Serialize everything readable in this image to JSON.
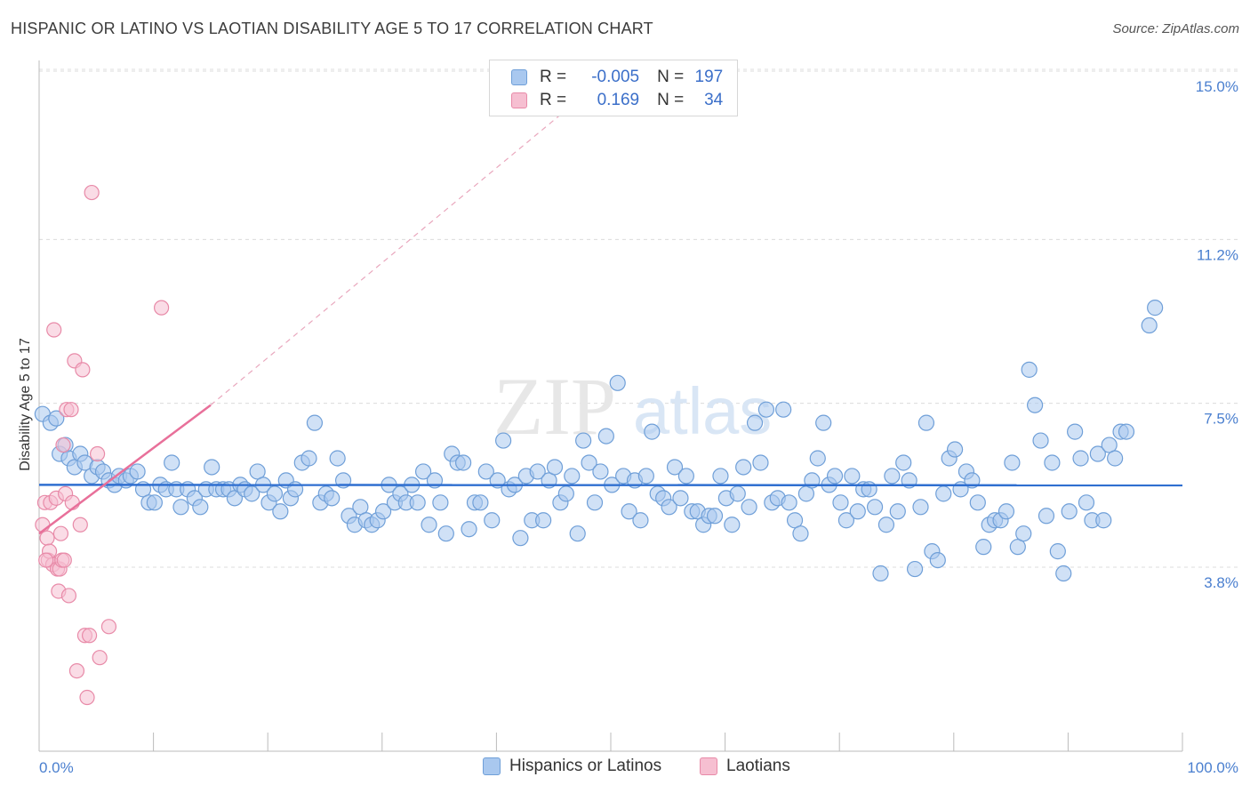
{
  "title": "HISPANIC OR LATINO VS LAOTIAN DISABILITY AGE 5 TO 17 CORRELATION CHART",
  "source": "Source: ZipAtlas.com",
  "watermark": "ZIPatlas",
  "colors": {
    "blue_fill": "#a9c8ef",
    "blue_stroke": "#6f9fd8",
    "blue_line": "#2f6fd0",
    "pink_fill": "#f6bfd1",
    "pink_stroke": "#e88aa8",
    "pink_line": "#e8709a",
    "tick_text": "#4a7fcf"
  },
  "legend": {
    "rows": [
      {
        "r_label": "R =",
        "r_value": "-0.005",
        "n_label": "N =",
        "n_value": "197"
      },
      {
        "r_label": "R =",
        "r_value": "0.169",
        "n_label": "N =",
        "n_value": "34"
      }
    ]
  },
  "bottom_legend": {
    "items": [
      {
        "label": "Hispanics or Latinos"
      },
      {
        "label": "Laotians"
      }
    ]
  },
  "chart_data": {
    "type": "scatter",
    "ylabel": "Disability Age 5 to 17",
    "xlabel": "",
    "xlim": [
      0,
      100
    ],
    "ylim": [
      0.5,
      15.5
    ],
    "x_tick_labels": [
      "0.0%",
      "100.0%"
    ],
    "y_ticks": [
      3.8,
      7.5,
      11.2,
      15.0
    ],
    "y_tick_labels": [
      "3.8%",
      "7.5%",
      "11.2%",
      "15.0%"
    ],
    "grid": "horizontal dashed",
    "series": [
      {
        "name": "Hispanics or Latinos",
        "color": "blue",
        "trend": {
          "x0": 0,
          "y0": 6.0,
          "x1": 100,
          "y1": 5.99
        },
        "points": [
          [
            0.3,
            7.6
          ],
          [
            1.0,
            7.4
          ],
          [
            1.5,
            7.5
          ],
          [
            1.8,
            6.7
          ],
          [
            2.3,
            6.9
          ],
          [
            2.6,
            6.6
          ],
          [
            3.1,
            6.4
          ],
          [
            3.6,
            6.7
          ],
          [
            4.0,
            6.5
          ],
          [
            4.6,
            6.2
          ],
          [
            5.1,
            6.4
          ],
          [
            5.6,
            6.3
          ],
          [
            6.1,
            6.1
          ],
          [
            6.6,
            6.0
          ],
          [
            7.0,
            6.2
          ],
          [
            7.6,
            6.1
          ],
          [
            8.0,
            6.2
          ],
          [
            8.6,
            6.3
          ],
          [
            9.1,
            5.9
          ],
          [
            9.6,
            5.6
          ],
          [
            10.1,
            5.6
          ],
          [
            10.6,
            6.0
          ],
          [
            11.1,
            5.9
          ],
          [
            11.6,
            6.5
          ],
          [
            12.0,
            5.9
          ],
          [
            12.4,
            5.5
          ],
          [
            13.0,
            5.9
          ],
          [
            13.6,
            5.7
          ],
          [
            14.1,
            5.5
          ],
          [
            14.6,
            5.9
          ],
          [
            15.1,
            6.4
          ],
          [
            15.5,
            5.9
          ],
          [
            16.1,
            5.9
          ],
          [
            16.6,
            5.9
          ],
          [
            17.1,
            5.7
          ],
          [
            17.6,
            6.0
          ],
          [
            18.0,
            5.9
          ],
          [
            18.6,
            5.8
          ],
          [
            19.1,
            6.3
          ],
          [
            19.6,
            6.0
          ],
          [
            20.1,
            5.6
          ],
          [
            20.6,
            5.8
          ],
          [
            21.1,
            5.4
          ],
          [
            21.6,
            6.1
          ],
          [
            22.0,
            5.7
          ],
          [
            22.4,
            5.9
          ],
          [
            23.0,
            6.5
          ],
          [
            23.6,
            6.6
          ],
          [
            24.1,
            7.4
          ],
          [
            24.6,
            5.6
          ],
          [
            25.1,
            5.8
          ],
          [
            25.6,
            5.7
          ],
          [
            26.1,
            6.6
          ],
          [
            26.6,
            6.1
          ],
          [
            27.1,
            5.3
          ],
          [
            27.6,
            5.1
          ],
          [
            28.1,
            5.5
          ],
          [
            28.6,
            5.2
          ],
          [
            29.1,
            5.1
          ],
          [
            29.6,
            5.2
          ],
          [
            30.1,
            5.4
          ],
          [
            30.6,
            6.0
          ],
          [
            31.1,
            5.6
          ],
          [
            31.6,
            5.8
          ],
          [
            32.1,
            5.6
          ],
          [
            32.6,
            6.0
          ],
          [
            33.1,
            5.6
          ],
          [
            33.6,
            6.3
          ],
          [
            34.1,
            5.1
          ],
          [
            34.6,
            6.1
          ],
          [
            35.1,
            5.6
          ],
          [
            35.6,
            4.9
          ],
          [
            36.1,
            6.7
          ],
          [
            36.6,
            6.5
          ],
          [
            37.1,
            6.5
          ],
          [
            37.6,
            5.0
          ],
          [
            38.1,
            5.6
          ],
          [
            38.6,
            5.6
          ],
          [
            39.1,
            6.3
          ],
          [
            39.6,
            5.2
          ],
          [
            40.1,
            6.1
          ],
          [
            40.6,
            7.0
          ],
          [
            41.1,
            5.9
          ],
          [
            41.6,
            6.0
          ],
          [
            42.1,
            4.8
          ],
          [
            42.6,
            6.2
          ],
          [
            43.1,
            5.2
          ],
          [
            43.6,
            6.3
          ],
          [
            44.1,
            5.2
          ],
          [
            44.6,
            6.1
          ],
          [
            45.1,
            6.4
          ],
          [
            45.6,
            5.6
          ],
          [
            46.1,
            5.8
          ],
          [
            46.6,
            6.2
          ],
          [
            47.1,
            4.9
          ],
          [
            47.6,
            7.0
          ],
          [
            48.1,
            6.5
          ],
          [
            48.6,
            5.6
          ],
          [
            49.1,
            6.3
          ],
          [
            49.6,
            7.1
          ],
          [
            50.1,
            6.0
          ],
          [
            50.6,
            8.3
          ],
          [
            51.1,
            6.2
          ],
          [
            51.6,
            5.4
          ],
          [
            52.1,
            6.1
          ],
          [
            52.6,
            5.2
          ],
          [
            53.1,
            6.2
          ],
          [
            53.6,
            7.2
          ],
          [
            54.1,
            5.8
          ],
          [
            54.6,
            5.7
          ],
          [
            55.1,
            5.5
          ],
          [
            55.6,
            6.4
          ],
          [
            56.1,
            5.7
          ],
          [
            56.6,
            6.2
          ],
          [
            57.1,
            5.4
          ],
          [
            57.6,
            5.4
          ],
          [
            58.1,
            5.1
          ],
          [
            58.6,
            5.3
          ],
          [
            59.1,
            5.3
          ],
          [
            59.6,
            6.2
          ],
          [
            60.1,
            5.7
          ],
          [
            60.6,
            5.1
          ],
          [
            61.1,
            5.8
          ],
          [
            61.6,
            6.4
          ],
          [
            62.1,
            5.5
          ],
          [
            62.6,
            7.4
          ],
          [
            63.1,
            6.5
          ],
          [
            63.6,
            7.7
          ],
          [
            64.1,
            5.6
          ],
          [
            64.6,
            5.7
          ],
          [
            65.1,
            7.7
          ],
          [
            65.6,
            5.6
          ],
          [
            66.1,
            5.2
          ],
          [
            66.6,
            4.9
          ],
          [
            67.1,
            5.8
          ],
          [
            67.6,
            6.1
          ],
          [
            68.1,
            6.6
          ],
          [
            68.6,
            7.4
          ],
          [
            69.1,
            6.0
          ],
          [
            69.6,
            6.2
          ],
          [
            70.1,
            5.6
          ],
          [
            70.6,
            5.2
          ],
          [
            71.1,
            6.2
          ],
          [
            71.6,
            5.4
          ],
          [
            72.1,
            5.9
          ],
          [
            72.6,
            5.9
          ],
          [
            73.1,
            5.5
          ],
          [
            73.6,
            4.0
          ],
          [
            74.1,
            5.1
          ],
          [
            74.6,
            6.2
          ],
          [
            75.1,
            5.4
          ],
          [
            75.6,
            6.5
          ],
          [
            76.1,
            6.1
          ],
          [
            76.6,
            4.1
          ],
          [
            77.1,
            5.5
          ],
          [
            77.6,
            7.4
          ],
          [
            78.1,
            4.5
          ],
          [
            78.6,
            4.3
          ],
          [
            79.1,
            5.8
          ],
          [
            79.6,
            6.6
          ],
          [
            80.1,
            6.8
          ],
          [
            80.6,
            5.9
          ],
          [
            81.1,
            6.3
          ],
          [
            81.6,
            6.1
          ],
          [
            82.1,
            5.6
          ],
          [
            82.6,
            4.6
          ],
          [
            83.1,
            5.1
          ],
          [
            83.6,
            5.2
          ],
          [
            84.1,
            5.2
          ],
          [
            84.6,
            5.4
          ],
          [
            85.1,
            6.5
          ],
          [
            85.6,
            4.6
          ],
          [
            86.1,
            4.9
          ],
          [
            86.6,
            8.6
          ],
          [
            87.1,
            7.8
          ],
          [
            87.6,
            7.0
          ],
          [
            88.1,
            5.3
          ],
          [
            88.6,
            6.5
          ],
          [
            89.1,
            4.5
          ],
          [
            89.6,
            4.0
          ],
          [
            90.1,
            5.4
          ],
          [
            90.6,
            7.2
          ],
          [
            91.1,
            6.6
          ],
          [
            91.6,
            5.6
          ],
          [
            92.1,
            5.2
          ],
          [
            92.6,
            6.7
          ],
          [
            93.1,
            5.2
          ],
          [
            93.6,
            6.9
          ],
          [
            94.1,
            6.6
          ],
          [
            94.6,
            7.2
          ],
          [
            95.1,
            7.2
          ],
          [
            97.1,
            9.6
          ],
          [
            97.6,
            10.0
          ]
        ]
      },
      {
        "name": "Laotians",
        "color": "pink",
        "trend": {
          "x0": 0,
          "y0": 4.9,
          "x1": 15,
          "y1": 7.8,
          "dashed_to": [
            50,
            15.3
          ]
        },
        "points": [
          [
            0.3,
            5.1
          ],
          [
            0.5,
            5.6
          ],
          [
            0.7,
            4.8
          ],
          [
            0.8,
            4.3
          ],
          [
            0.9,
            4.5
          ],
          [
            1.0,
            5.6
          ],
          [
            1.2,
            4.2
          ],
          [
            1.3,
            9.5
          ],
          [
            1.5,
            5.7
          ],
          [
            1.6,
            4.1
          ],
          [
            1.7,
            3.6
          ],
          [
            1.8,
            4.1
          ],
          [
            1.9,
            4.9
          ],
          [
            2.0,
            4.3
          ],
          [
            2.1,
            6.9
          ],
          [
            2.2,
            4.3
          ],
          [
            2.3,
            5.8
          ],
          [
            2.4,
            7.7
          ],
          [
            2.6,
            3.5
          ],
          [
            2.8,
            7.7
          ],
          [
            2.9,
            5.6
          ],
          [
            3.1,
            8.8
          ],
          [
            3.3,
            1.8
          ],
          [
            3.6,
            5.1
          ],
          [
            3.8,
            8.6
          ],
          [
            4.0,
            2.6
          ],
          [
            4.2,
            1.2
          ],
          [
            4.4,
            2.6
          ],
          [
            4.6,
            12.6
          ],
          [
            5.1,
            6.7
          ],
          [
            5.3,
            2.1
          ],
          [
            6.1,
            2.8
          ],
          [
            10.7,
            10.0
          ],
          [
            0.6,
            4.3
          ]
        ]
      }
    ]
  }
}
